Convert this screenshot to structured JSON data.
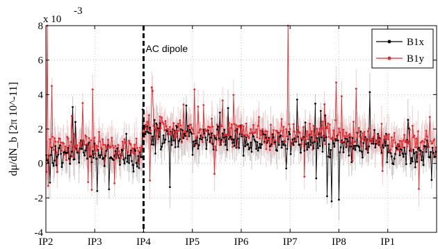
{
  "chart_data": {
    "type": "line",
    "ylabel": "dμ/dN_b [2π 10^-11]",
    "y_exponent_label": "x 10",
    "y_exponent_power": "-3",
    "ylim": [
      -4,
      8
    ],
    "yticks": [
      -4,
      -2,
      0,
      2,
      4,
      6,
      8
    ],
    "xticks": [
      {
        "label": "IP2",
        "pos": 0
      },
      {
        "label": "IP3",
        "pos": 1
      },
      {
        "label": "IP4",
        "pos": 2
      },
      {
        "label": "IP5",
        "pos": 3
      },
      {
        "label": "IP6",
        "pos": 4
      },
      {
        "label": "IP7",
        "pos": 5
      },
      {
        "label": "IP8",
        "pos": 6
      },
      {
        "label": "IP1",
        "pos": 7
      }
    ],
    "xlim": [
      0,
      8
    ],
    "grid": true,
    "legend_position": "top-right",
    "annotation": {
      "text": "AC dipole",
      "x": 2
    },
    "series": [
      {
        "name": "B1x",
        "color": "#000000",
        "base_levels": [
          0.6,
          0.4,
          1.6,
          1.4,
          1.3,
          1.2,
          1.0,
          0.6
        ],
        "spikes": [
          {
            "x": 6.0,
            "y": -2.1
          },
          {
            "x": 5.75,
            "y": -1.9
          },
          {
            "x": 5.85,
            "y": -2.2
          },
          {
            "x": 1.05,
            "y": -1.6
          },
          {
            "x": 1.3,
            "y": -1.5
          }
        ]
      },
      {
        "name": "B1y",
        "color": "#e8262b",
        "base_levels": [
          1.1,
          1.0,
          2.0,
          1.8,
          1.8,
          1.7,
          1.5,
          1.2
        ],
        "spikes": [
          {
            "x": 0.02,
            "y": 8.0
          },
          {
            "x": 0.12,
            "y": 4.5
          },
          {
            "x": 0.05,
            "y": -1.3
          },
          {
            "x": 0.95,
            "y": 4.3
          },
          {
            "x": 3.05,
            "y": 4.3
          },
          {
            "x": 4.95,
            "y": 8.0
          },
          {
            "x": 5.95,
            "y": 4.7
          },
          {
            "x": 6.05,
            "y": 3.9
          }
        ]
      }
    ]
  }
}
